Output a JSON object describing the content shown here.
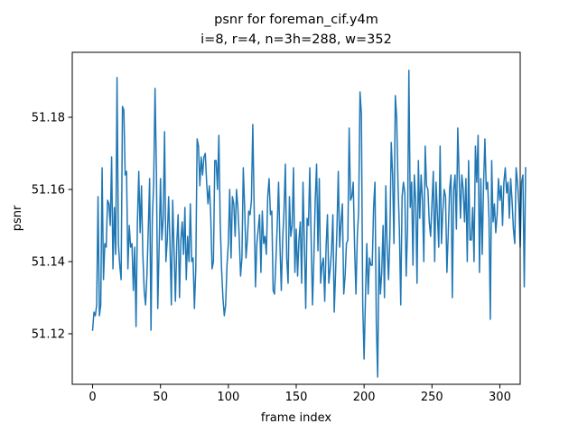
{
  "chart_data": {
    "type": "line",
    "title": "psnr for foreman_cif.y4m",
    "subtitle": "i=8, r=4, n=3h=288, w=352",
    "xlabel": "frame index",
    "ylabel": "psnr",
    "xlim": [
      -15,
      315
    ],
    "ylim": [
      51.106,
      51.198
    ],
    "x_ticks": [
      0,
      50,
      100,
      150,
      200,
      250,
      300
    ],
    "y_ticks": [
      51.12,
      51.14,
      51.16,
      51.18
    ],
    "y_tick_labels": [
      "51.12",
      "51.14",
      "51.16",
      "51.18"
    ],
    "grid": false,
    "legend": "none",
    "series": [
      {
        "color": "#1f77b4",
        "x_start": 0,
        "x_step": 1,
        "values": [
          51.121,
          51.126,
          51.125,
          51.128,
          51.158,
          51.125,
          51.128,
          51.166,
          51.135,
          51.145,
          51.144,
          51.157,
          51.156,
          51.15,
          51.169,
          51.138,
          51.155,
          51.142,
          51.191,
          51.145,
          51.139,
          51.135,
          51.183,
          51.182,
          51.164,
          51.165,
          51.138,
          51.15,
          51.144,
          51.145,
          51.132,
          51.144,
          51.122,
          51.151,
          51.165,
          51.148,
          51.161,
          51.142,
          51.132,
          51.128,
          51.136,
          51.149,
          51.163,
          51.121,
          51.152,
          51.162,
          51.188,
          51.165,
          51.127,
          51.144,
          51.163,
          51.146,
          51.152,
          51.176,
          51.14,
          51.146,
          51.158,
          51.145,
          51.128,
          51.157,
          51.143,
          51.129,
          51.145,
          51.153,
          51.13,
          51.146,
          51.151,
          51.142,
          51.155,
          51.135,
          51.147,
          51.14,
          51.156,
          51.14,
          51.141,
          51.127,
          51.138,
          51.174,
          51.172,
          51.161,
          51.169,
          51.164,
          51.169,
          51.17,
          51.162,
          51.156,
          51.161,
          51.153,
          51.138,
          51.14,
          51.168,
          51.168,
          51.16,
          51.175,
          51.151,
          51.138,
          51.13,
          51.125,
          51.128,
          51.139,
          51.145,
          51.16,
          51.141,
          51.158,
          51.156,
          51.147,
          51.16,
          51.155,
          51.147,
          51.136,
          51.141,
          51.166,
          51.155,
          51.141,
          51.146,
          51.154,
          51.153,
          51.157,
          51.178,
          51.155,
          51.133,
          51.145,
          51.149,
          51.153,
          51.137,
          51.154,
          51.145,
          51.147,
          51.142,
          51.158,
          51.163,
          51.153,
          51.154,
          51.132,
          51.131,
          51.14,
          51.15,
          51.162,
          51.145,
          51.132,
          51.146,
          51.154,
          51.167,
          51.141,
          51.134,
          51.158,
          51.147,
          51.15,
          51.166,
          51.137,
          51.149,
          51.136,
          51.146,
          51.151,
          51.134,
          51.162,
          51.145,
          51.127,
          51.152,
          51.15,
          51.166,
          51.146,
          51.128,
          51.141,
          51.157,
          51.167,
          51.143,
          51.163,
          51.134,
          51.139,
          51.141,
          51.129,
          51.144,
          51.153,
          51.134,
          51.138,
          51.143,
          51.153,
          51.126,
          51.137,
          51.149,
          51.165,
          51.144,
          51.151,
          51.156,
          51.131,
          51.136,
          51.145,
          51.146,
          51.177,
          51.157,
          51.158,
          51.162,
          51.144,
          51.131,
          51.147,
          51.154,
          51.187,
          51.181,
          51.128,
          51.113,
          51.13,
          51.145,
          51.131,
          51.141,
          51.139,
          51.139,
          51.155,
          51.162,
          51.123,
          51.108,
          51.144,
          51.131,
          51.137,
          51.15,
          51.13,
          51.161,
          51.144,
          51.135,
          51.147,
          51.173,
          51.164,
          51.145,
          51.186,
          51.18,
          51.161,
          51.149,
          51.128,
          51.158,
          51.162,
          51.159,
          51.136,
          51.149,
          51.193,
          51.155,
          51.162,
          51.139,
          51.164,
          51.157,
          51.134,
          51.168,
          51.152,
          51.164,
          51.157,
          51.14,
          51.172,
          51.161,
          51.16,
          51.151,
          51.147,
          51.156,
          51.165,
          51.14,
          51.162,
          51.153,
          51.144,
          51.172,
          51.145,
          51.154,
          51.16,
          51.158,
          51.137,
          51.148,
          51.16,
          51.164,
          51.13,
          51.16,
          51.164,
          51.149,
          51.177,
          51.164,
          51.152,
          51.164,
          51.16,
          51.151,
          51.163,
          51.14,
          51.168,
          51.146,
          51.146,
          51.155,
          51.14,
          51.172,
          51.162,
          51.175,
          51.137,
          51.163,
          51.142,
          51.161,
          51.174,
          51.16,
          51.162,
          51.152,
          51.124,
          51.168,
          51.151,
          51.156,
          51.148,
          51.153,
          51.163,
          51.157,
          51.161,
          51.15,
          51.162,
          51.166,
          51.159,
          51.162,
          51.152,
          51.163,
          51.157,
          51.149,
          51.145,
          51.166,
          51.162,
          51.156,
          51.144,
          51.162,
          51.164,
          51.133,
          51.166
        ]
      }
    ]
  }
}
